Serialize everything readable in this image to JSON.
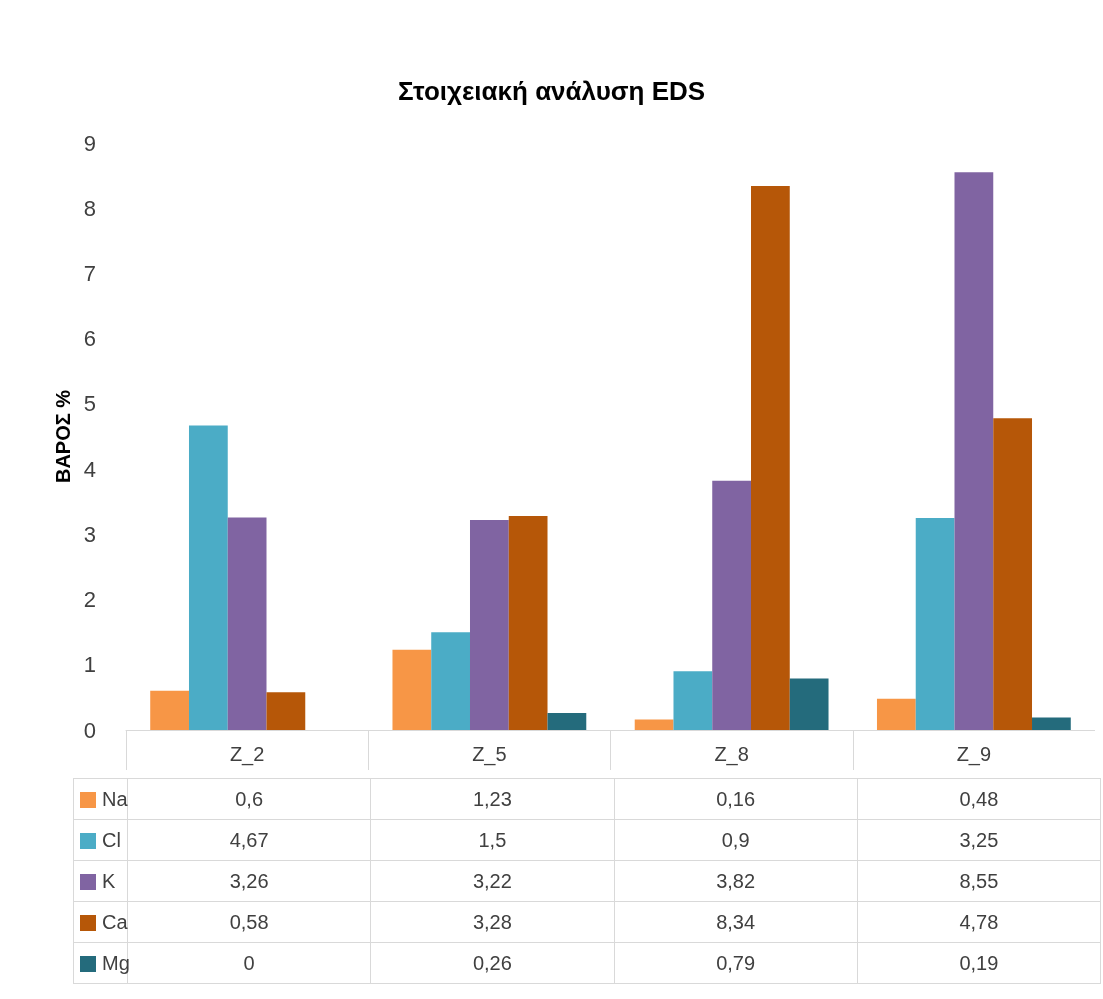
{
  "chart_data": {
    "type": "bar",
    "title": "Στοιχειακή ανάλυση EDS",
    "ylabel": "ΒΑΡΟΣ %",
    "categories": [
      "Z_2",
      "Z_5",
      "Z_8",
      "Z_9"
    ],
    "series": [
      {
        "name": "Na",
        "color": "#f79646",
        "values": [
          0.6,
          1.23,
          0.16,
          0.48
        ],
        "value_labels": [
          "0,6",
          "1,23",
          "0,16",
          "0,48"
        ]
      },
      {
        "name": "Cl",
        "color": "#4bacc6",
        "values": [
          4.67,
          1.5,
          0.9,
          3.25
        ],
        "value_labels": [
          "4,67",
          "1,5",
          "0,9",
          "3,25"
        ]
      },
      {
        "name": "K",
        "color": "#8064a2",
        "values": [
          3.26,
          3.22,
          3.82,
          8.55
        ],
        "value_labels": [
          "3,26",
          "3,22",
          "3,82",
          "8,55"
        ]
      },
      {
        "name": "Ca",
        "color": "#b65708",
        "values": [
          0.58,
          3.28,
          8.34,
          4.78
        ],
        "value_labels": [
          "0,58",
          "3,28",
          "8,34",
          "4,78"
        ]
      },
      {
        "name": "Mg",
        "color": "#246b7c",
        "values": [
          0,
          0.26,
          0.79,
          0.19
        ],
        "value_labels": [
          "0",
          "0,26",
          "0,79",
          "0,19"
        ]
      }
    ],
    "ylim": [
      0,
      9
    ],
    "yticks": [
      0,
      1,
      2,
      3,
      4,
      5,
      6,
      7,
      8,
      9
    ],
    "grid": false,
    "legend": "bottom"
  }
}
